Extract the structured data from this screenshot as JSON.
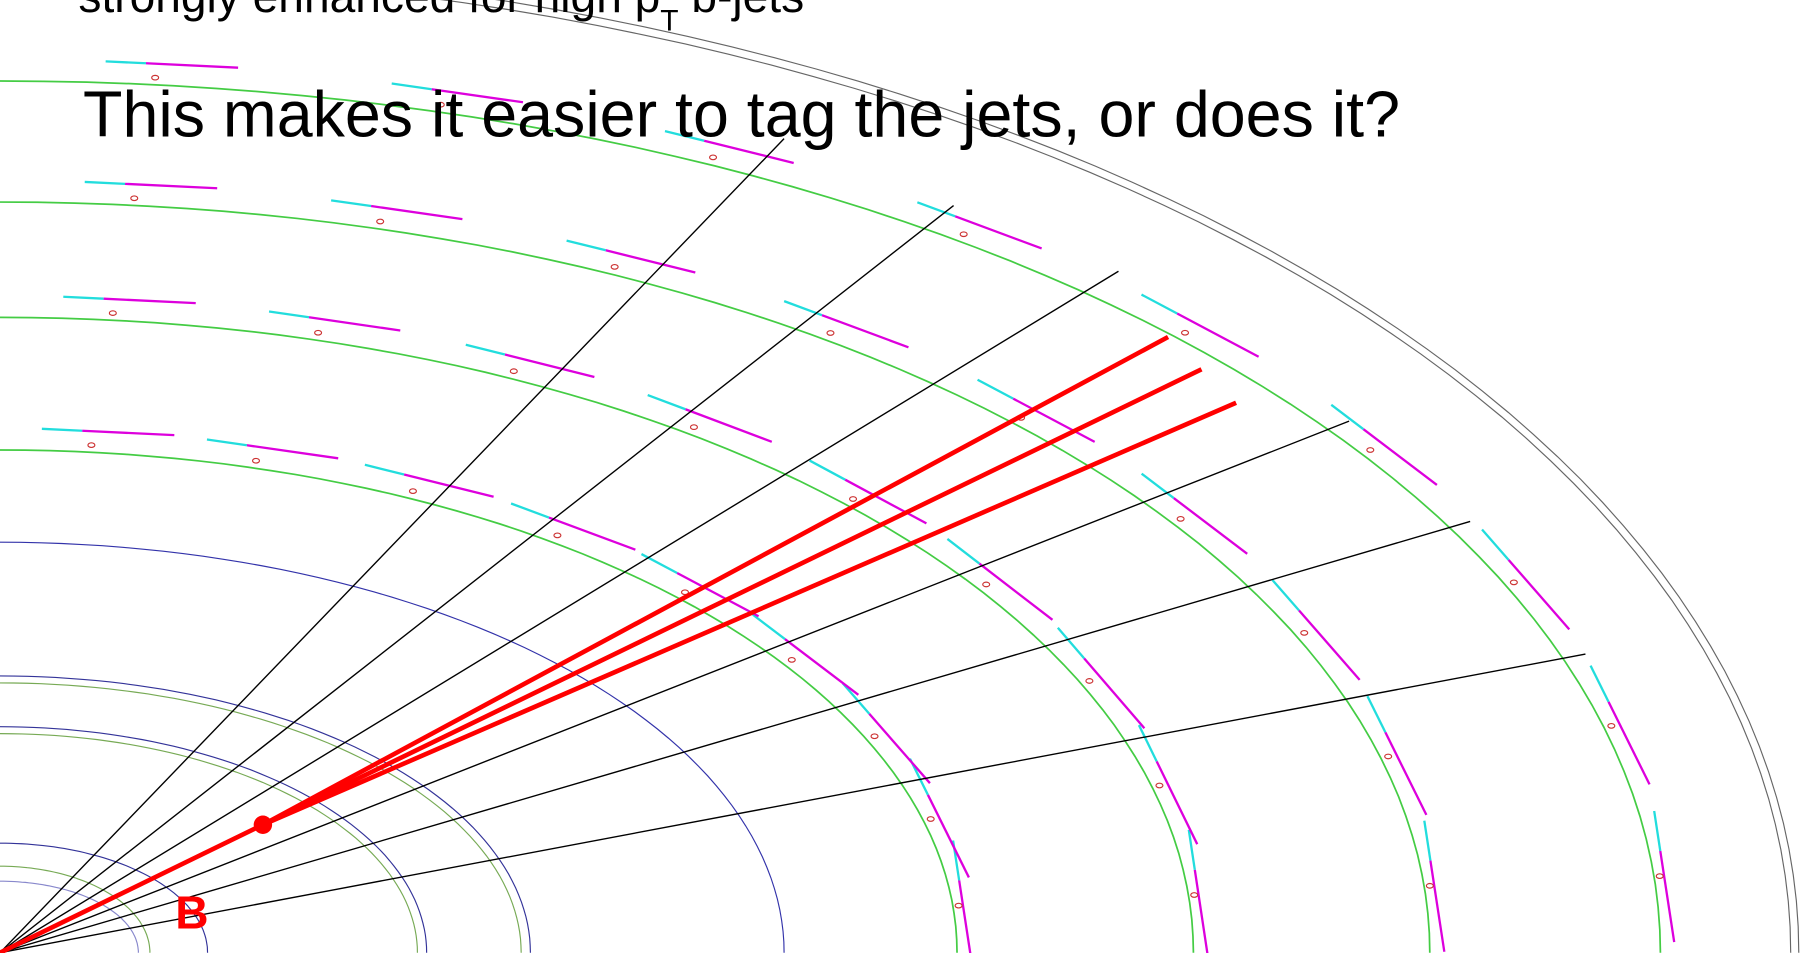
{
  "slide": {
    "previous_line": {
      "before": "strongly enhanced for high p",
      "subscript": "T",
      "after": " b-jets"
    },
    "title": "This makes it easier to tag the jets, or does it?",
    "label": "B"
  }
}
